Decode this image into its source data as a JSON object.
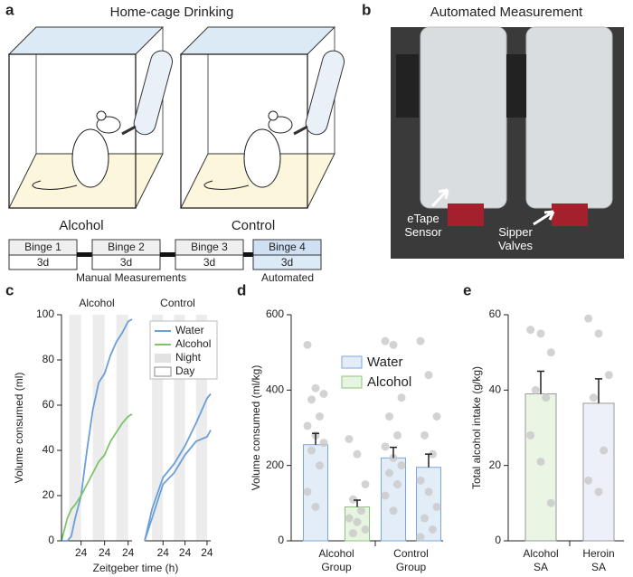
{
  "panel_labels": [
    "a",
    "b",
    "c",
    "d",
    "e"
  ],
  "panel_a": {
    "title": "Home-cage Drinking",
    "cages": [
      "Alcohol",
      "Control"
    ],
    "schedule": [
      {
        "label": "Binge 1",
        "duration": "3d"
      },
      {
        "label": "Binge 2",
        "duration": "3d"
      },
      {
        "label": "Binge 3",
        "duration": "3d"
      },
      {
        "label": "Binge 4",
        "duration": "3d"
      }
    ],
    "phases": [
      "Manual Measurements",
      "Automated"
    ]
  },
  "panel_b": {
    "title": "Automated Measurement",
    "callouts": [
      "eTape Sensor",
      "Sipper Valves"
    ]
  },
  "chart_data": [
    {
      "type": "line",
      "xlabel": "Zeitgeber time (h)",
      "ylabel": "Volume consumed (ml)",
      "xlim": [
        4,
        76
      ],
      "xticks": [
        24,
        {
          "value": 48,
          "label": "24"
        },
        {
          "value": 72,
          "label": "24"
        }
      ],
      "ylim": [
        0,
        100
      ],
      "yticks": [
        0,
        20,
        40,
        60,
        80,
        100
      ],
      "night": [
        [
          12,
          24
        ],
        [
          36,
          48
        ],
        [
          60,
          72
        ]
      ],
      "shading_legend": [
        "Night",
        "Day"
      ],
      "subplots": [
        {
          "title": "Alcohol",
          "x": [
            4,
            10,
            14,
            18,
            24,
            30,
            36,
            42,
            48,
            54,
            60,
            66,
            72,
            76
          ],
          "series": [
            {
              "name": "Water",
              "color": "#6a9fd8",
              "values": [
                0,
                0,
                2,
                10,
                20,
                40,
                58,
                70,
                74,
                82,
                88,
                92,
                97,
                98
              ]
            },
            {
              "name": "Alcohol",
              "color": "#7cc46a",
              "values": [
                0,
                10,
                14,
                16,
                20,
                25,
                30,
                35,
                38,
                44,
                48,
                52,
                55,
                56
              ]
            }
          ]
        },
        {
          "title": "Control",
          "x": [
            4,
            12,
            24,
            36,
            48,
            60,
            72,
            76
          ],
          "series": [
            {
              "color": "#6a9fd8",
              "values": [
                0,
                14,
                28,
                34,
                42,
                52,
                63,
                65
              ]
            },
            {
              "color": "#6a9fd8",
              "values": [
                0,
                10,
                25,
                30,
                38,
                44,
                46,
                49
              ]
            }
          ]
        }
      ]
    },
    {
      "type": "bar",
      "ylabel": "Volume consumed (ml/kg)",
      "ylim": [
        0,
        600
      ],
      "yticks": [
        0,
        200,
        400,
        600
      ],
      "groups": [
        "Alcohol Group",
        "Control Group"
      ],
      "series": [
        {
          "name": "Water",
          "color": "#7ea6d6",
          "fill": "#e3edf8",
          "values": [
            255,
            null,
            220,
            195
          ],
          "errors": [
            30,
            null,
            28,
            35
          ],
          "points": [
            [
              520,
              405,
              390,
              375,
              330,
              305,
              280,
              260,
              240,
              200,
              130,
              90
            ],
            null,
            [
              530,
              520,
              380,
              330,
              280,
              250,
              220,
              200,
              180,
              150,
              120,
              80
            ],
            [
              530,
              440,
              330,
              280,
              230,
              160,
              130,
              90,
              60,
              30,
              10
            ]
          ]
        },
        {
          "name": "Alcohol",
          "color": "#8cc47a",
          "fill": "#e8f4e2",
          "values": [
            null,
            90,
            null,
            null
          ],
          "errors": [
            null,
            18,
            null,
            null
          ],
          "points": [
            null,
            [
              270,
              230,
              150,
              110,
              80,
              60,
              50,
              30,
              20
            ],
            null,
            null
          ]
        }
      ]
    },
    {
      "type": "bar",
      "ylabel": "Total alcohol intake (g/kg)",
      "ylim": [
        0,
        60
      ],
      "yticks": [
        0,
        20,
        40,
        60
      ],
      "categories": [
        "Alcohol SA",
        "Heroin SA"
      ],
      "values": [
        39,
        36.5
      ],
      "errors": [
        6,
        6.5
      ],
      "colors": [
        "#eaf5e4",
        "#eef0f9"
      ],
      "points": [
        [
          56,
          55,
          50,
          40,
          38,
          28,
          21,
          10
        ],
        [
          59,
          55,
          44,
          38,
          24,
          16,
          13
        ]
      ]
    }
  ]
}
